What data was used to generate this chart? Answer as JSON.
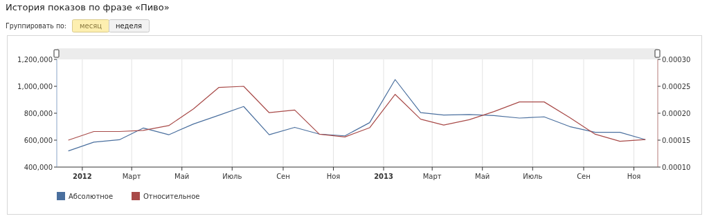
{
  "chart_data": {
    "type": "line",
    "title": "История показов по фразе «Пиво»",
    "annotations": [
      "Группировать по:",
      "месяц",
      "неделя"
    ],
    "x": [
      "2011-12-15",
      "2012-01-15",
      "2012-02-15",
      "2012-03-15",
      "2012-04-15",
      "2012-05-15",
      "2012-06-15",
      "2012-07-15",
      "2012-08-15",
      "2012-09-15",
      "2012-10-15",
      "2012-11-15",
      "2012-12-15",
      "2013-01-15",
      "2013-02-15",
      "2013-03-15",
      "2013-04-15",
      "2013-05-15",
      "2013-06-15",
      "2013-07-15",
      "2013-08-15",
      "2013-09-15",
      "2013-10-15",
      "2013-11-15"
    ],
    "series": [
      {
        "name": "Абсолютное",
        "color": "#4a6f9e",
        "values": [
          520000,
          585000,
          603000,
          690000,
          640000,
          720000,
          785000,
          850000,
          640000,
          695000,
          645000,
          632000,
          730000,
          1050000,
          804000,
          787000,
          790000,
          783000,
          764000,
          773000,
          701000,
          658000,
          658000,
          604000
        ]
      },
      {
        "name": "Относительное",
        "color": "#a84a48",
        "axis": "y2",
        "values": [
          0.00015,
          0.000166,
          0.000166,
          0.000168,
          0.000177,
          0.000208,
          0.000248,
          0.00025,
          0.000201,
          0.000206,
          0.000161,
          0.000156,
          0.000173,
          0.000235,
          0.000189,
          0.000178,
          0.000188,
          0.000203,
          0.000221,
          0.000221,
          0.000192,
          0.000161,
          0.000148,
          0.000151
        ]
      }
    ],
    "xlim": [
      "2011-12-01",
      "2013-11-30"
    ],
    "xticks": [
      {
        "value": "2012-01-01",
        "label": "2012"
      },
      {
        "value": "2012-03-01",
        "label": "Март"
      },
      {
        "value": "2012-05-01",
        "label": "Май"
      },
      {
        "value": "2012-07-01",
        "label": "Июль"
      },
      {
        "value": "2012-09-01",
        "label": "Сен"
      },
      {
        "value": "2012-11-01",
        "label": "Ноя"
      },
      {
        "value": "2013-01-01",
        "label": "2013"
      },
      {
        "value": "2013-03-01",
        "label": "Март"
      },
      {
        "value": "2013-05-01",
        "label": "Май"
      },
      {
        "value": "2013-07-01",
        "label": "Июль"
      },
      {
        "value": "2013-09-01",
        "label": "Сен"
      },
      {
        "value": "2013-11-01",
        "label": "Ноя"
      }
    ],
    "ylim": [
      400000,
      1200000
    ],
    "yticks": [
      {
        "value": 400000,
        "label": "400,000"
      },
      {
        "value": 600000,
        "label": "600,000"
      },
      {
        "value": 800000,
        "label": "800,000"
      },
      {
        "value": 1000000,
        "label": "1,000,000"
      },
      {
        "value": 1200000,
        "label": "1,200,000"
      }
    ],
    "y2lim": [
      0.0001,
      0.0003
    ],
    "y2ticks": [
      {
        "value": 0.0001,
        "label": "0.00010"
      },
      {
        "value": 0.00015,
        "label": "0.00015"
      },
      {
        "value": 0.0002,
        "label": "0.00020"
      },
      {
        "value": 0.00025,
        "label": "0.00025"
      },
      {
        "value": 0.0003,
        "label": "0.00030"
      }
    ],
    "grid": "x",
    "legend": "bottom left",
    "marker": "none",
    "line_style": "solid"
  }
}
